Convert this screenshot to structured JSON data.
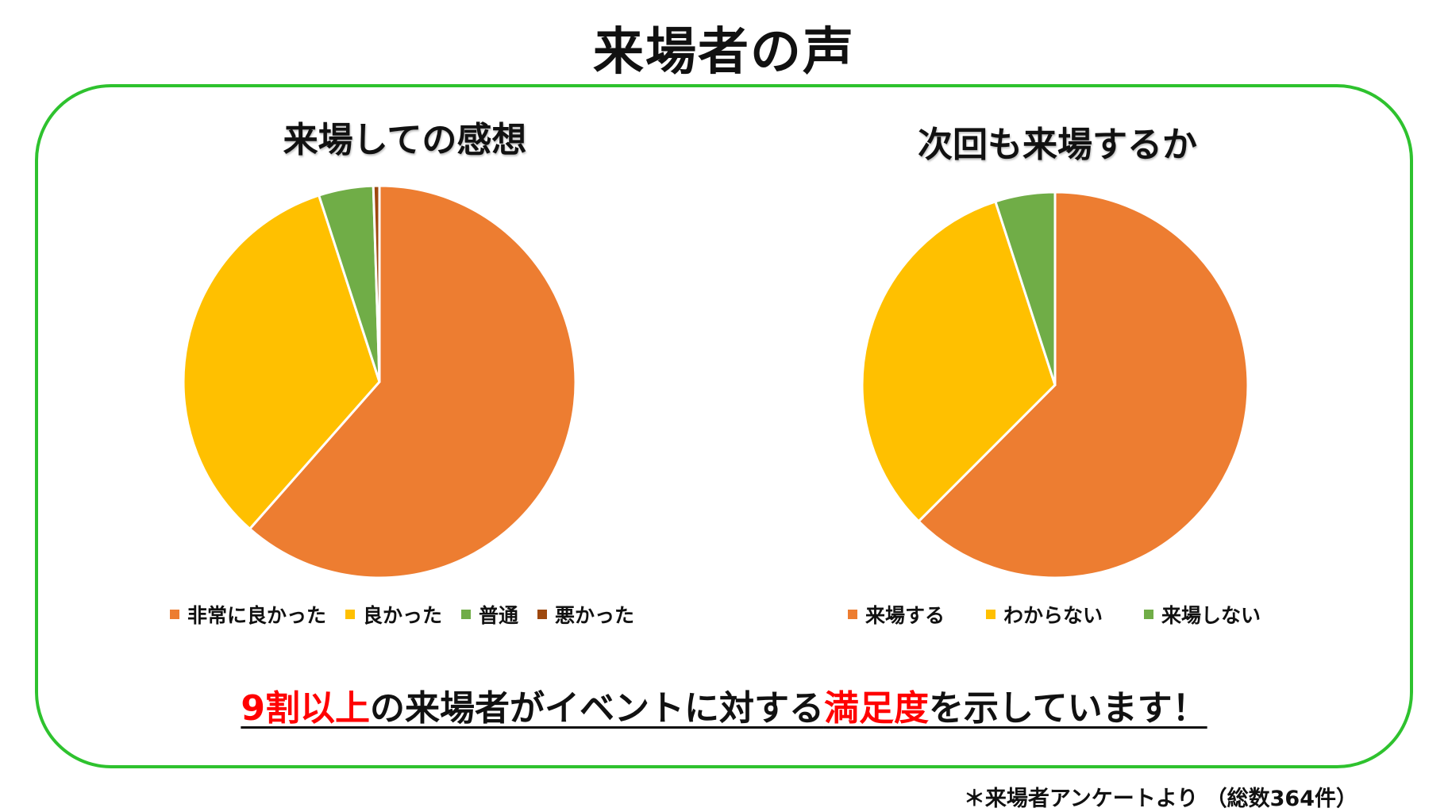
{
  "page_title": "来場者の声",
  "message": {
    "part1": "9割以上",
    "part2": "の来場者がイベントに対する",
    "part3": "満足度",
    "part4": "を示しています！"
  },
  "footnote": "＊来場者アンケートより （総数364件）",
  "chart_data": [
    {
      "type": "pie",
      "title": "来場しての感想",
      "categories": [
        "非常に良かった",
        "良かった",
        "普通",
        "悪かった"
      ],
      "values": [
        61.5,
        33.5,
        4.5,
        0.5
      ],
      "colors": [
        "#ed7d31",
        "#ffc000",
        "#70ad47",
        "#9e480e"
      ],
      "legend": "bottom"
    },
    {
      "type": "pie",
      "title": "次回も来場するか",
      "categories": [
        "来場する",
        "わからない",
        "来場しない"
      ],
      "values": [
        62.5,
        32.5,
        5.0
      ],
      "colors": [
        "#ed7d31",
        "#ffc000",
        "#70ad47"
      ],
      "legend": "bottom"
    }
  ]
}
